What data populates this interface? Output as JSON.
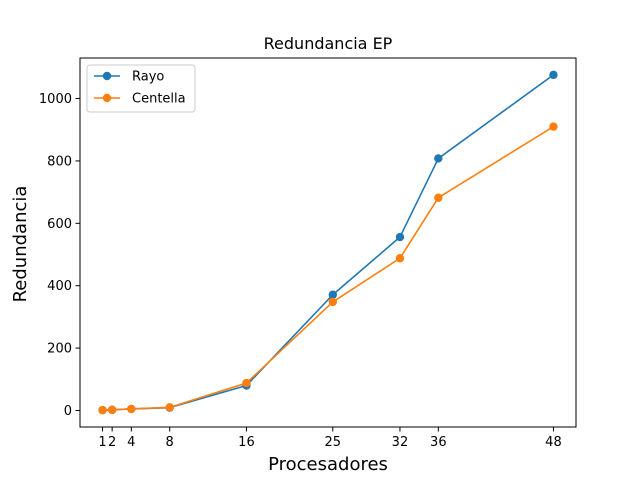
{
  "chart_data": {
    "type": "line",
    "title": "Redundancia EP",
    "xlabel": "Procesadores",
    "ylabel": "Redundancia",
    "x": [
      1,
      2,
      4,
      8,
      16,
      25,
      32,
      36,
      48
    ],
    "x_ticks": [
      "1",
      "2",
      "4",
      "8",
      "16",
      "25",
      "32",
      "36",
      "48"
    ],
    "y_ticks": [
      "0",
      "200",
      "400",
      "600",
      "800",
      "1000"
    ],
    "y_tick_values": [
      0,
      200,
      400,
      600,
      800,
      1000
    ],
    "xlim": [
      -1.35,
      50.35
    ],
    "ylim": [
      -53,
      1130
    ],
    "grid": false,
    "legend_position": "top-left",
    "series": [
      {
        "name": "Rayo",
        "color": "#1f77b4",
        "marker": "circle",
        "values": [
          1,
          2,
          5,
          9,
          80,
          371,
          556,
          808,
          1076
        ]
      },
      {
        "name": "Centella",
        "color": "#ff7f0e",
        "marker": "circle",
        "values": [
          1,
          2,
          5,
          10,
          88,
          348,
          488,
          682,
          910
        ]
      }
    ]
  }
}
